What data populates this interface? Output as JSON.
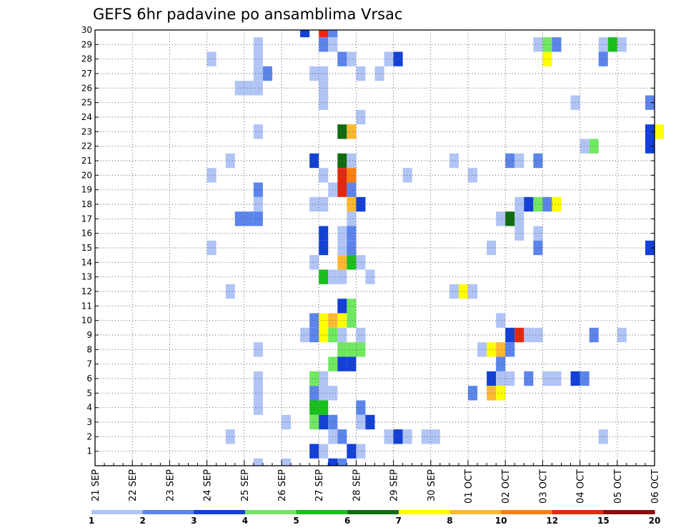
{
  "chart_data": {
    "type": "heatmap",
    "title": "GEFS 6hr padavine po ansamblima Vrsac",
    "xlabel": "",
    "ylabel": "",
    "x_ticks": [
      "21 SEP",
      "22 SEP",
      "23 SEP",
      "24 SEP",
      "25 SEP",
      "26 SEP",
      "27 SEP",
      "28 SEP",
      "29 SEP",
      "30 SEP",
      "01 OCT",
      "02 OCT",
      "03 OCT",
      "04 OCT",
      "05 OCT",
      "06 OCT"
    ],
    "x_range_days": [
      0,
      15
    ],
    "y_ticks": [
      1,
      2,
      3,
      4,
      5,
      6,
      7,
      8,
      9,
      10,
      11,
      12,
      13,
      14,
      15,
      16,
      17,
      18,
      19,
      20,
      21,
      22,
      23,
      24,
      25,
      26,
      27,
      28,
      29,
      30
    ],
    "y_range": [
      0,
      30
    ],
    "grid": true,
    "legend_position": "bottom",
    "colorbar": {
      "labels": [
        "1",
        "2",
        "3",
        "4",
        "5",
        "6",
        "7",
        "8",
        "10",
        "12",
        "15",
        "20"
      ],
      "colors": [
        "#b0c4f6",
        "#5b85ea",
        "#1340d6",
        "#70e860",
        "#18c01c",
        "#106c10",
        "#ffff00",
        "#ffb830",
        "#ff7e10",
        "#e02a10",
        "#8c0c0c"
      ]
    },
    "cells": [
      [
        22,
        30,
        3
      ],
      [
        24,
        30,
        10
      ],
      [
        25,
        30,
        2
      ],
      [
        17,
        29,
        1
      ],
      [
        24,
        29,
        2
      ],
      [
        25,
        29,
        1
      ],
      [
        47,
        29,
        1
      ],
      [
        48,
        29,
        4
      ],
      [
        49,
        29,
        2
      ],
      [
        54,
        29,
        1
      ],
      [
        55,
        29,
        5
      ],
      [
        56,
        29,
        1
      ],
      [
        12,
        28,
        1
      ],
      [
        17,
        28,
        1
      ],
      [
        26,
        28,
        2
      ],
      [
        27,
        28,
        1
      ],
      [
        31,
        28,
        1
      ],
      [
        32,
        28,
        3
      ],
      [
        48,
        28,
        7
      ],
      [
        54,
        28,
        2
      ],
      [
        17,
        27,
        1
      ],
      [
        18,
        27,
        2
      ],
      [
        23,
        27,
        1
      ],
      [
        24,
        27,
        1
      ],
      [
        28,
        27,
        1
      ],
      [
        30,
        27,
        1
      ],
      [
        15,
        26,
        1
      ],
      [
        16,
        26,
        1
      ],
      [
        17,
        26,
        1
      ],
      [
        24,
        26,
        1
      ],
      [
        24,
        25,
        1
      ],
      [
        51,
        25,
        1
      ],
      [
        59,
        25,
        2
      ],
      [
        28,
        24,
        1
      ],
      [
        17,
        23,
        1
      ],
      [
        26,
        23,
        6
      ],
      [
        27,
        23,
        8
      ],
      [
        59,
        23,
        3
      ],
      [
        60,
        23,
        7
      ],
      [
        52,
        22,
        1
      ],
      [
        53,
        22,
        4
      ],
      [
        59,
        22,
        3
      ],
      [
        14,
        21,
        1
      ],
      [
        23,
        21,
        3
      ],
      [
        26,
        21,
        6
      ],
      [
        27,
        21,
        1
      ],
      [
        38,
        21,
        1
      ],
      [
        44,
        21,
        2
      ],
      [
        45,
        21,
        1
      ],
      [
        47,
        21,
        2
      ],
      [
        12,
        20,
        1
      ],
      [
        24,
        20,
        1
      ],
      [
        26,
        20,
        10
      ],
      [
        27,
        20,
        9
      ],
      [
        33,
        20,
        1
      ],
      [
        40,
        20,
        1
      ],
      [
        17,
        19,
        2
      ],
      [
        25,
        19,
        1
      ],
      [
        26,
        19,
        10
      ],
      [
        27,
        19,
        2
      ],
      [
        17,
        18,
        1
      ],
      [
        23,
        18,
        1
      ],
      [
        24,
        18,
        1
      ],
      [
        27,
        18,
        8
      ],
      [
        28,
        18,
        3
      ],
      [
        45,
        18,
        1
      ],
      [
        46,
        18,
        3
      ],
      [
        47,
        18,
        4
      ],
      [
        48,
        18,
        2
      ],
      [
        49,
        18,
        7
      ],
      [
        15,
        17,
        2
      ],
      [
        16,
        17,
        2
      ],
      [
        17,
        17,
        2
      ],
      [
        27,
        17,
        1
      ],
      [
        43,
        17,
        1
      ],
      [
        44,
        17,
        6
      ],
      [
        45,
        17,
        1
      ],
      [
        24,
        16,
        3
      ],
      [
        26,
        16,
        1
      ],
      [
        27,
        16,
        2
      ],
      [
        45,
        16,
        1
      ],
      [
        47,
        16,
        1
      ],
      [
        12,
        15,
        1
      ],
      [
        24,
        15,
        3
      ],
      [
        26,
        15,
        1
      ],
      [
        27,
        15,
        2
      ],
      [
        42,
        15,
        1
      ],
      [
        47,
        15,
        2
      ],
      [
        59,
        15,
        3
      ],
      [
        23,
        14,
        1
      ],
      [
        26,
        14,
        8
      ],
      [
        27,
        14,
        5
      ],
      [
        28,
        14,
        1
      ],
      [
        24,
        13,
        5
      ],
      [
        25,
        13,
        1
      ],
      [
        26,
        13,
        1
      ],
      [
        29,
        13,
        1
      ],
      [
        14,
        12,
        1
      ],
      [
        38,
        12,
        1
      ],
      [
        39,
        12,
        7
      ],
      [
        40,
        12,
        1
      ],
      [
        26,
        11,
        3
      ],
      [
        27,
        11,
        4
      ],
      [
        23,
        10,
        2
      ],
      [
        24,
        10,
        7
      ],
      [
        25,
        10,
        8
      ],
      [
        26,
        10,
        7
      ],
      [
        27,
        10,
        4
      ],
      [
        43,
        10,
        1
      ],
      [
        22,
        9,
        1
      ],
      [
        23,
        9,
        2
      ],
      [
        24,
        9,
        7
      ],
      [
        25,
        9,
        4
      ],
      [
        26,
        9,
        1
      ],
      [
        28,
        9,
        1
      ],
      [
        44,
        9,
        3
      ],
      [
        45,
        9,
        10
      ],
      [
        46,
        9,
        1
      ],
      [
        47,
        9,
        1
      ],
      [
        53,
        9,
        2
      ],
      [
        56,
        9,
        1
      ],
      [
        17,
        8,
        1
      ],
      [
        26,
        8,
        4
      ],
      [
        27,
        8,
        4
      ],
      [
        28,
        8,
        4
      ],
      [
        41,
        8,
        1
      ],
      [
        42,
        8,
        7
      ],
      [
        43,
        8,
        8
      ],
      [
        44,
        8,
        2
      ],
      [
        25,
        7,
        4
      ],
      [
        26,
        7,
        3
      ],
      [
        27,
        7,
        3
      ],
      [
        43,
        7,
        2
      ],
      [
        17,
        6,
        1
      ],
      [
        23,
        6,
        4
      ],
      [
        24,
        6,
        1
      ],
      [
        42,
        6,
        3
      ],
      [
        43,
        6,
        1
      ],
      [
        44,
        6,
        1
      ],
      [
        46,
        6,
        2
      ],
      [
        48,
        6,
        1
      ],
      [
        49,
        6,
        1
      ],
      [
        51,
        6,
        3
      ],
      [
        52,
        6,
        2
      ],
      [
        17,
        5,
        1
      ],
      [
        23,
        5,
        2
      ],
      [
        24,
        5,
        1
      ],
      [
        25,
        5,
        1
      ],
      [
        40,
        5,
        2
      ],
      [
        42,
        5,
        8
      ],
      [
        43,
        5,
        7
      ],
      [
        17,
        4,
        1
      ],
      [
        23,
        4,
        5
      ],
      [
        24,
        4,
        5
      ],
      [
        28,
        4,
        2
      ],
      [
        20,
        3,
        1
      ],
      [
        23,
        3,
        4
      ],
      [
        24,
        3,
        3
      ],
      [
        25,
        3,
        2
      ],
      [
        28,
        3,
        1
      ],
      [
        29,
        3,
        3
      ],
      [
        14,
        2,
        1
      ],
      [
        25,
        2,
        1
      ],
      [
        26,
        2,
        2
      ],
      [
        31,
        2,
        1
      ],
      [
        32,
        2,
        3
      ],
      [
        33,
        2,
        1
      ],
      [
        35,
        2,
        1
      ],
      [
        36,
        2,
        1
      ],
      [
        54,
        2,
        1
      ],
      [
        23,
        1,
        3
      ],
      [
        24,
        1,
        1
      ],
      [
        27,
        1,
        3
      ],
      [
        28,
        1,
        1
      ],
      [
        17,
        0,
        1
      ],
      [
        20,
        0,
        1
      ],
      [
        25,
        0,
        3
      ],
      [
        26,
        0,
        2
      ]
    ]
  }
}
